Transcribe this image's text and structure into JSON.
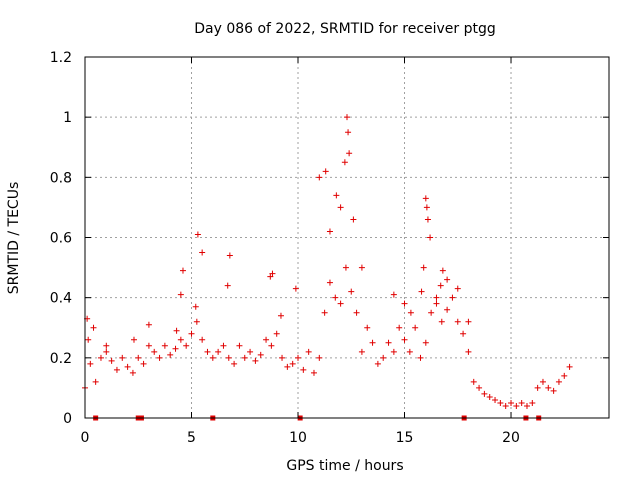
{
  "chart_data": {
    "type": "scatter",
    "title": "Day 086 of 2022, SRMTID for receiver ptgg",
    "xlabel": "GPS time / hours",
    "ylabel": "SRMTID / TECUs",
    "xlim": [
      0,
      24.6
    ],
    "ylim": [
      0,
      1.2
    ],
    "x_ticks": [
      0,
      5,
      10,
      15,
      20
    ],
    "x_tick_labels": [
      "0",
      "5",
      "10",
      "15",
      "20"
    ],
    "y_ticks": [
      0,
      0.2,
      0.4,
      0.6,
      0.8,
      1,
      1.2
    ],
    "y_tick_labels": [
      "0",
      "0.2",
      "0.4",
      "0.6",
      "0.8",
      "1",
      "1.2"
    ],
    "grid": true,
    "marker": "plus",
    "color": "#e00000",
    "series": [
      {
        "name": "SRMTID",
        "x": [
          0.0,
          0.25,
          0.5,
          0.75,
          1.0,
          1.25,
          1.5,
          1.75,
          2.0,
          2.25,
          2.5,
          2.75,
          3.0,
          3.25,
          3.5,
          3.75,
          4.0,
          4.25,
          4.5,
          4.75,
          5.0,
          5.25,
          5.5,
          5.75,
          6.0,
          6.25,
          6.5,
          6.75,
          7.0,
          7.25,
          7.5,
          7.75,
          8.0,
          8.25,
          8.5,
          8.75,
          9.0,
          9.25,
          9.5,
          9.75,
          10.0,
          10.25,
          10.5,
          10.75,
          11.0,
          11.25,
          11.5,
          11.75,
          12.0,
          12.25,
          12.5,
          12.75,
          13.0,
          13.25,
          13.5,
          13.75,
          14.0,
          14.25,
          14.5,
          14.75,
          15.0,
          15.25,
          15.5,
          15.75,
          16.0,
          16.25,
          16.5,
          16.75,
          17.0,
          17.25,
          17.5,
          17.75,
          18.0,
          18.25,
          18.5,
          18.75,
          19.0,
          19.25,
          19.5,
          19.75,
          20.0,
          20.25,
          20.5,
          20.75,
          21.0,
          21.25,
          21.5,
          21.75,
          22.0,
          22.25,
          22.5,
          22.75,
          0.1,
          0.15,
          0.4,
          1.0,
          2.3,
          3.0,
          4.3,
          4.5,
          4.6,
          5.2,
          5.3,
          5.5,
          6.7,
          6.8,
          8.7,
          8.8,
          9.2,
          9.9,
          11.0,
          11.3,
          11.5,
          11.8,
          12.0,
          12.2,
          12.3,
          12.35,
          12.4,
          12.6,
          13.0,
          14.5,
          15.0,
          15.3,
          15.8,
          15.9,
          16.0,
          16.05,
          16.1,
          16.2,
          16.5,
          16.7,
          16.8,
          17.0,
          17.5,
          18.0
        ],
        "y": [
          0.1,
          0.18,
          0.12,
          0.2,
          0.22,
          0.19,
          0.16,
          0.2,
          0.17,
          0.15,
          0.2,
          0.18,
          0.24,
          0.22,
          0.2,
          0.24,
          0.21,
          0.23,
          0.26,
          0.24,
          0.28,
          0.32,
          0.26,
          0.22,
          0.2,
          0.22,
          0.24,
          0.2,
          0.18,
          0.24,
          0.2,
          0.22,
          0.19,
          0.21,
          0.26,
          0.24,
          0.28,
          0.2,
          0.17,
          0.18,
          0.2,
          0.16,
          0.22,
          0.15,
          0.2,
          0.35,
          0.45,
          0.4,
          0.38,
          0.5,
          0.42,
          0.35,
          0.22,
          0.3,
          0.25,
          0.18,
          0.2,
          0.25,
          0.22,
          0.3,
          0.26,
          0.22,
          0.3,
          0.2,
          0.25,
          0.35,
          0.38,
          0.32,
          0.36,
          0.4,
          0.32,
          0.28,
          0.22,
          0.12,
          0.1,
          0.08,
          0.07,
          0.06,
          0.05,
          0.04,
          0.05,
          0.04,
          0.05,
          0.04,
          0.05,
          0.1,
          0.12,
          0.1,
          0.09,
          0.12,
          0.14,
          0.17,
          0.33,
          0.26,
          0.3,
          0.24,
          0.26,
          0.31,
          0.29,
          0.41,
          0.49,
          0.37,
          0.61,
          0.55,
          0.44,
          0.54,
          0.47,
          0.48,
          0.34,
          0.43,
          0.8,
          0.82,
          0.62,
          0.74,
          0.7,
          0.85,
          1.0,
          0.95,
          0.88,
          0.66,
          0.5,
          0.41,
          0.38,
          0.35,
          0.42,
          0.5,
          0.73,
          0.7,
          0.66,
          0.6,
          0.4,
          0.44,
          0.49,
          0.46,
          0.43,
          0.32
        ]
      }
    ],
    "markers": {
      "x": [
        0.5,
        2.5,
        2.65,
        6.0,
        10.1,
        17.8,
        20.7,
        21.3
      ],
      "y": [
        0,
        0,
        0,
        0,
        0,
        0,
        0,
        0
      ]
    }
  }
}
